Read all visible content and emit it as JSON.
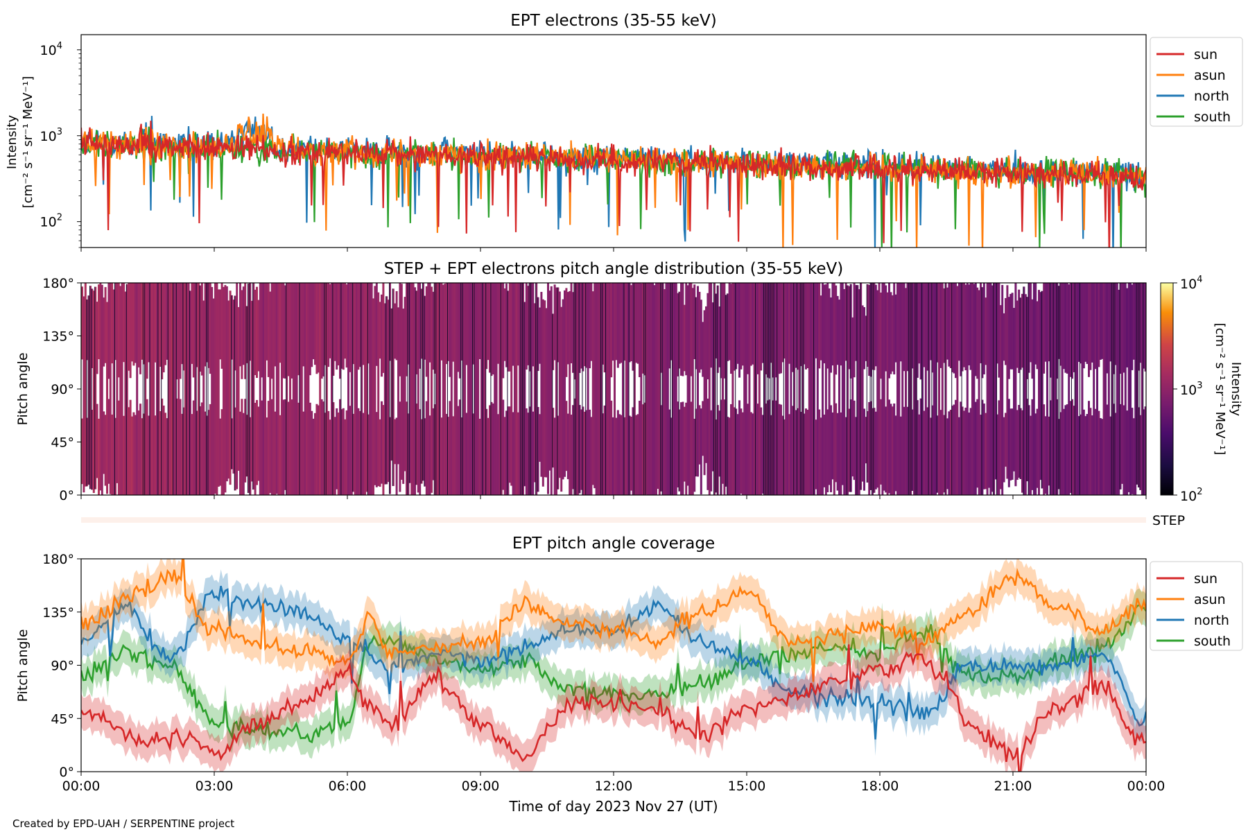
{
  "footer": "Created by EPD-UAH / SERPENTINE project",
  "colors": {
    "sun": "#d62728",
    "asun": "#ff7f0e",
    "north": "#1f77b4",
    "south": "#2ca02c",
    "step_strip": "#fdf0ea"
  },
  "chart_data": [
    {
      "type": "line",
      "title": "EPT electrons (35-55 keV)",
      "ylabel_line1": "Intensity",
      "ylabel_line2": "[cm⁻² s⁻¹ sr⁻¹ MeV⁻¹]",
      "yscale": "log",
      "ylim": [
        50,
        15000
      ],
      "y_ticks": [
        {
          "value": 100,
          "base": "10",
          "exp": "2"
        },
        {
          "value": 1000,
          "base": "10",
          "exp": "3"
        },
        {
          "value": 10000,
          "base": "10",
          "exp": "4"
        }
      ],
      "x_range_hours": [
        0,
        24
      ],
      "legend_position": "upper-right-outside",
      "series": [
        {
          "name": "sun",
          "level_start": 800,
          "level_end": 330,
          "spread": 0.16
        },
        {
          "name": "asun",
          "level_start": 820,
          "level_end": 340,
          "spread": 0.17
        },
        {
          "name": "north",
          "level_start": 860,
          "level_end": 360,
          "spread": 0.17
        },
        {
          "name": "south",
          "level_start": 780,
          "level_end": 350,
          "spread": 0.17
        }
      ]
    },
    {
      "type": "heatmap",
      "title": "STEP + EPT electrons pitch angle distribution (35-55 keV)",
      "ylabel": "Pitch angle",
      "ylim": [
        0,
        180
      ],
      "y_ticks": [
        "0°",
        "45°",
        "90°",
        "135°",
        "180°"
      ],
      "colorbar": {
        "label_line1": "Intensity",
        "label_line2": "[cm⁻² s⁻¹ sr⁻¹ MeV⁻¹]",
        "range": [
          100,
          10000
        ],
        "scale": "log",
        "colormap": "inferno",
        "ticks": [
          {
            "value": 100,
            "base": "10",
            "exp": "2"
          },
          {
            "value": 1000,
            "base": "10",
            "exp": "3"
          },
          {
            "value": 10000,
            "base": "10",
            "exp": "4"
          }
        ]
      },
      "step_strip_label": "STEP"
    },
    {
      "type": "line",
      "title": "EPT pitch angle coverage",
      "ylabel": "Pitch angle",
      "ylim": [
        0,
        180
      ],
      "y_ticks": [
        "0°",
        "45°",
        "90°",
        "135°",
        "180°"
      ],
      "x_ticks": [
        "00:00",
        "03:00",
        "06:00",
        "09:00",
        "12:00",
        "15:00",
        "18:00",
        "21:00",
        "00:00"
      ],
      "xlabel": "Time of day 2023 Nov 27 (UT)",
      "legend_position": "upper-right-outside",
      "series": [
        {
          "name": "sun",
          "keypoints": [
            [
              0,
              52
            ],
            [
              1.5,
              25
            ],
            [
              2.5,
              30
            ],
            [
              3,
              15
            ],
            [
              4,
              40
            ],
            [
              5,
              60
            ],
            [
              6,
              85
            ],
            [
              6.5,
              55
            ],
            [
              7,
              40
            ],
            [
              8,
              80
            ],
            [
              9,
              40
            ],
            [
              10,
              15
            ],
            [
              11,
              55
            ],
            [
              12,
              60
            ],
            [
              13,
              50
            ],
            [
              14,
              30
            ],
            [
              15,
              55
            ],
            [
              16,
              65
            ],
            [
              17,
              75
            ],
            [
              18,
              85
            ],
            [
              19,
              95
            ],
            [
              19.5,
              75
            ],
            [
              20,
              40
            ],
            [
              21,
              15
            ],
            [
              22,
              55
            ],
            [
              23,
              70
            ],
            [
              24,
              25
            ]
          ]
        },
        {
          "name": "asun",
          "keypoints": [
            [
              0,
              125
            ],
            [
              1.5,
              155
            ],
            [
              2,
              165
            ],
            [
              3,
              120
            ],
            [
              4,
              110
            ],
            [
              5,
              100
            ],
            [
              6,
              95
            ],
            [
              6.5,
              130
            ],
            [
              7,
              100
            ],
            [
              8,
              105
            ],
            [
              9,
              110
            ],
            [
              10,
              140
            ],
            [
              11,
              125
            ],
            [
              12,
              120
            ],
            [
              13,
              110
            ],
            [
              14,
              135
            ],
            [
              15,
              150
            ],
            [
              16,
              110
            ],
            [
              17,
              115
            ],
            [
              18,
              125
            ],
            [
              19,
              110
            ],
            [
              20,
              135
            ],
            [
              21,
              165
            ],
            [
              22,
              140
            ],
            [
              23,
              120
            ],
            [
              24,
              140
            ]
          ]
        },
        {
          "name": "north",
          "keypoints": [
            [
              0,
              110
            ],
            [
              1,
              140
            ],
            [
              2,
              95
            ],
            [
              3,
              150
            ],
            [
              4,
              140
            ],
            [
              5,
              135
            ],
            [
              6,
              110
            ],
            [
              7,
              85
            ],
            [
              8,
              100
            ],
            [
              9,
              95
            ],
            [
              10,
              105
            ],
            [
              11,
              120
            ],
            [
              12,
              120
            ],
            [
              13,
              140
            ],
            [
              14,
              110
            ],
            [
              15,
              95
            ],
            [
              16,
              70
            ],
            [
              17,
              60
            ],
            [
              18,
              60
            ],
            [
              19,
              50
            ],
            [
              20,
              90
            ],
            [
              21,
              90
            ],
            [
              22,
              90
            ],
            [
              23,
              100
            ],
            [
              24,
              40
            ]
          ]
        },
        {
          "name": "south",
          "keypoints": [
            [
              0,
              80
            ],
            [
              1,
              100
            ],
            [
              2,
              90
            ],
            [
              3,
              40
            ],
            [
              4,
              35
            ],
            [
              5,
              30
            ],
            [
              6,
              40
            ],
            [
              6.5,
              110
            ],
            [
              7,
              110
            ],
            [
              8,
              95
            ],
            [
              9,
              85
            ],
            [
              10,
              95
            ],
            [
              11,
              70
            ],
            [
              12,
              65
            ],
            [
              13,
              65
            ],
            [
              14,
              75
            ],
            [
              15,
              90
            ],
            [
              16,
              100
            ],
            [
              17,
              105
            ],
            [
              18,
              100
            ],
            [
              19,
              120
            ],
            [
              20,
              80
            ],
            [
              21,
              80
            ],
            [
              22,
              95
            ],
            [
              23,
              105
            ],
            [
              24,
              140
            ]
          ]
        }
      ]
    }
  ]
}
